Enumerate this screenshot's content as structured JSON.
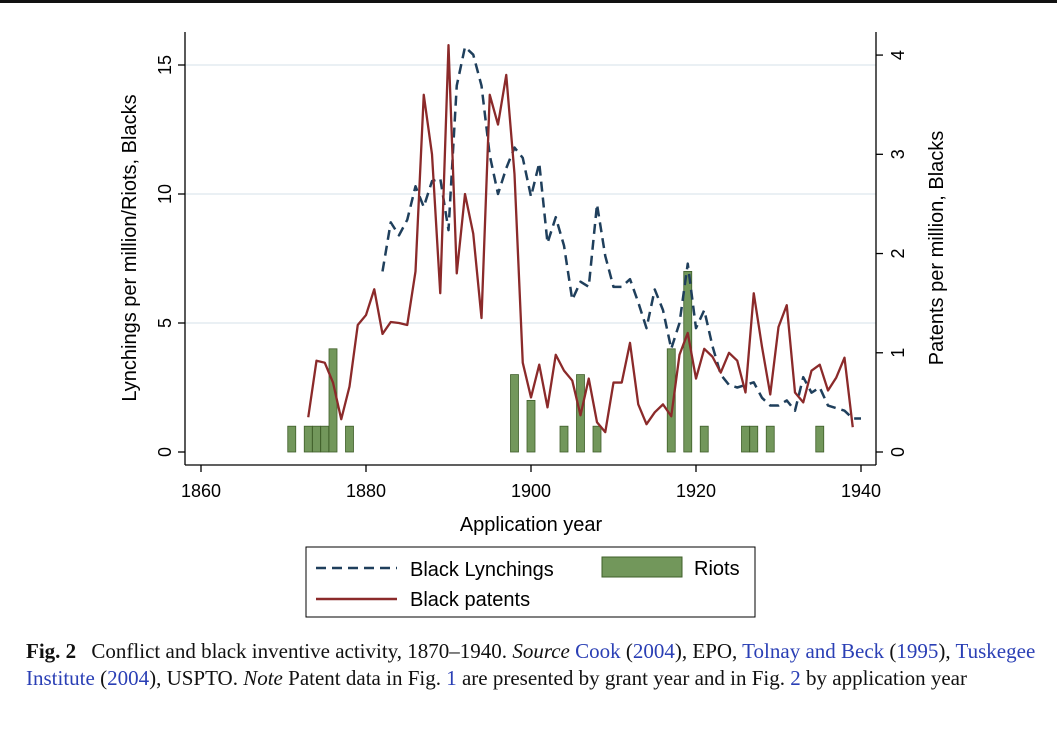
{
  "chart_data": {
    "type": "line+bar",
    "xlabel": "Application year",
    "ylabel_left": "Lynchings per million/Riots, Blacks",
    "ylabel_right": "Patents per million, Blacks",
    "xlim": [
      1860,
      1940
    ],
    "ylim_left": [
      0,
      16
    ],
    "ylim_right": [
      0,
      4.16
    ],
    "x_ticks": [
      1860,
      1880,
      1900,
      1920,
      1940
    ],
    "y_left_ticks": [
      0,
      5,
      10,
      15
    ],
    "y_right_ticks": [
      0,
      1,
      2,
      3,
      4
    ],
    "grid": "horizontal at left ticks",
    "legend_position": "bottom",
    "colors": {
      "lynchings": "#1f3f5c",
      "patents": "#8b2a2a",
      "riots_fill": "#72975b",
      "riots_edge": "#3f5f2a"
    },
    "series": [
      {
        "name": "Black Lynchings",
        "style": "dashed",
        "axis": "left",
        "x": [
          1882,
          1883,
          1884,
          1885,
          1886,
          1887,
          1888,
          1889,
          1890,
          1891,
          1892,
          1893,
          1894,
          1895,
          1896,
          1897,
          1898,
          1899,
          1900,
          1901,
          1902,
          1903,
          1904,
          1905,
          1906,
          1907,
          1908,
          1909,
          1910,
          1911,
          1912,
          1913,
          1914,
          1915,
          1916,
          1917,
          1918,
          1919,
          1920,
          1921,
          1922,
          1923,
          1924,
          1925,
          1926,
          1927,
          1928,
          1929,
          1930,
          1931,
          1932,
          1933,
          1934,
          1935,
          1936,
          1937,
          1938,
          1939,
          1940
        ],
        "values": [
          7.0,
          8.9,
          8.4,
          9.0,
          10.3,
          9.5,
          10.5,
          10.6,
          8.6,
          14.2,
          15.7,
          15.4,
          14.2,
          11.5,
          10.0,
          11.0,
          11.8,
          11.4,
          9.9,
          11.2,
          8.1,
          9.1,
          8.0,
          5.9,
          6.6,
          6.4,
          9.6,
          7.6,
          6.4,
          6.4,
          6.7,
          5.8,
          4.8,
          6.3,
          5.5,
          4.0,
          5.0,
          7.3,
          4.8,
          5.5,
          4.1,
          3.0,
          2.6,
          2.5,
          2.6,
          2.7,
          2.1,
          1.8,
          1.8,
          2.0,
          1.6,
          2.9,
          2.3,
          2.5,
          1.8,
          1.7,
          1.6,
          1.3,
          1.3
        ]
      },
      {
        "name": "Black patents",
        "style": "solid",
        "axis": "right",
        "x": [
          1873,
          1874,
          1875,
          1876,
          1877,
          1878,
          1879,
          1880,
          1881,
          1882,
          1883,
          1884,
          1885,
          1886,
          1887,
          1888,
          1889,
          1890,
          1891,
          1892,
          1893,
          1894,
          1895,
          1896,
          1897,
          1898,
          1899,
          1900,
          1901,
          1902,
          1903,
          1904,
          1905,
          1906,
          1907,
          1908,
          1909,
          1910,
          1911,
          1912,
          1913,
          1914,
          1915,
          1916,
          1917,
          1918,
          1919,
          1920,
          1921,
          1922,
          1923,
          1924,
          1925,
          1926,
          1927,
          1928,
          1929,
          1930,
          1931,
          1932,
          1933,
          1934,
          1935,
          1936,
          1937,
          1938,
          1939
        ],
        "values": [
          0.35,
          0.92,
          0.9,
          0.7,
          0.33,
          0.66,
          1.28,
          1.38,
          1.64,
          1.19,
          1.31,
          1.3,
          1.28,
          1.82,
          3.6,
          3.0,
          1.6,
          4.1,
          1.8,
          2.6,
          2.2,
          1.35,
          3.6,
          3.3,
          3.8,
          2.8,
          0.9,
          0.55,
          0.88,
          0.45,
          0.98,
          0.82,
          0.72,
          0.37,
          0.74,
          0.3,
          0.2,
          0.7,
          0.7,
          1.1,
          0.48,
          0.28,
          0.4,
          0.48,
          0.36,
          0.98,
          1.2,
          0.74,
          1.04,
          0.96,
          0.8,
          1.0,
          0.92,
          0.6,
          1.6,
          1.06,
          0.58,
          1.26,
          1.48,
          0.6,
          0.5,
          0.82,
          0.88,
          0.62,
          0.75,
          0.95,
          0.25
        ]
      },
      {
        "name": "Riots",
        "style": "bar",
        "axis": "left",
        "x": [
          1871,
          1873,
          1874,
          1875,
          1876,
          1878,
          1898,
          1900,
          1904,
          1906,
          1908,
          1917,
          1919,
          1921,
          1926,
          1927,
          1929,
          1935
        ],
        "values": [
          1,
          1,
          1,
          1,
          4,
          1,
          3,
          2,
          1,
          3,
          1,
          4,
          7,
          1,
          1,
          1,
          1,
          1
        ]
      }
    ]
  },
  "caption": {
    "fig_label": "Fig. 2",
    "p1": "Conflict and black inventive activity, 1870–1940.",
    "source_label": "Source",
    "ref_cook": "Cook",
    "p2": "(",
    "year_cook": "2004",
    "p3": "), EPO,",
    "ref_tolnay": "Tolnay and Beck",
    "p4": "(",
    "year_tolnay": "1995",
    "p5": "),",
    "ref_tuskegee": "Tuskegee Institute",
    "p6": "(",
    "year_tuskegee": "2004",
    "p7": "), USPTO.",
    "note_label": "Note",
    "p8": "Patent data in Fig.",
    "fig1_ref": "1",
    "p9": "are presented by grant year and in Fig.",
    "fig2_ref": "2",
    "p10": "by application year"
  }
}
